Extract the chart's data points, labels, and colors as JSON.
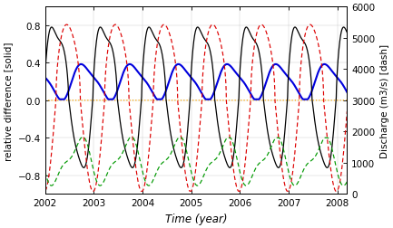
{
  "title": "",
  "xlabel": "Time (year)",
  "ylabel_left": "relative difference [solid]",
  "ylabel_right": "Discharge (m3/s) [dash]",
  "xlim": [
    2002.0,
    2008.2
  ],
  "ylim_left": [
    -1.0,
    1.0
  ],
  "ylim_right": [
    0,
    6000
  ],
  "yticks_left": [
    -0.8,
    -0.4,
    0.0,
    0.4,
    0.8
  ],
  "yticks_right": [
    0,
    1000,
    2000,
    3000,
    4000,
    5000,
    6000
  ],
  "xticks": [
    2002,
    2003,
    2004,
    2005,
    2006,
    2007,
    2008
  ],
  "bg_color": "#ffffff",
  "plot_bg_color": "#ffffff",
  "line_black_color": "#000000",
  "line_blue_color": "#0000dd",
  "line_red_color": "#dd0000",
  "line_green_color": "#009900",
  "line_orange_color": "#ffaa00"
}
